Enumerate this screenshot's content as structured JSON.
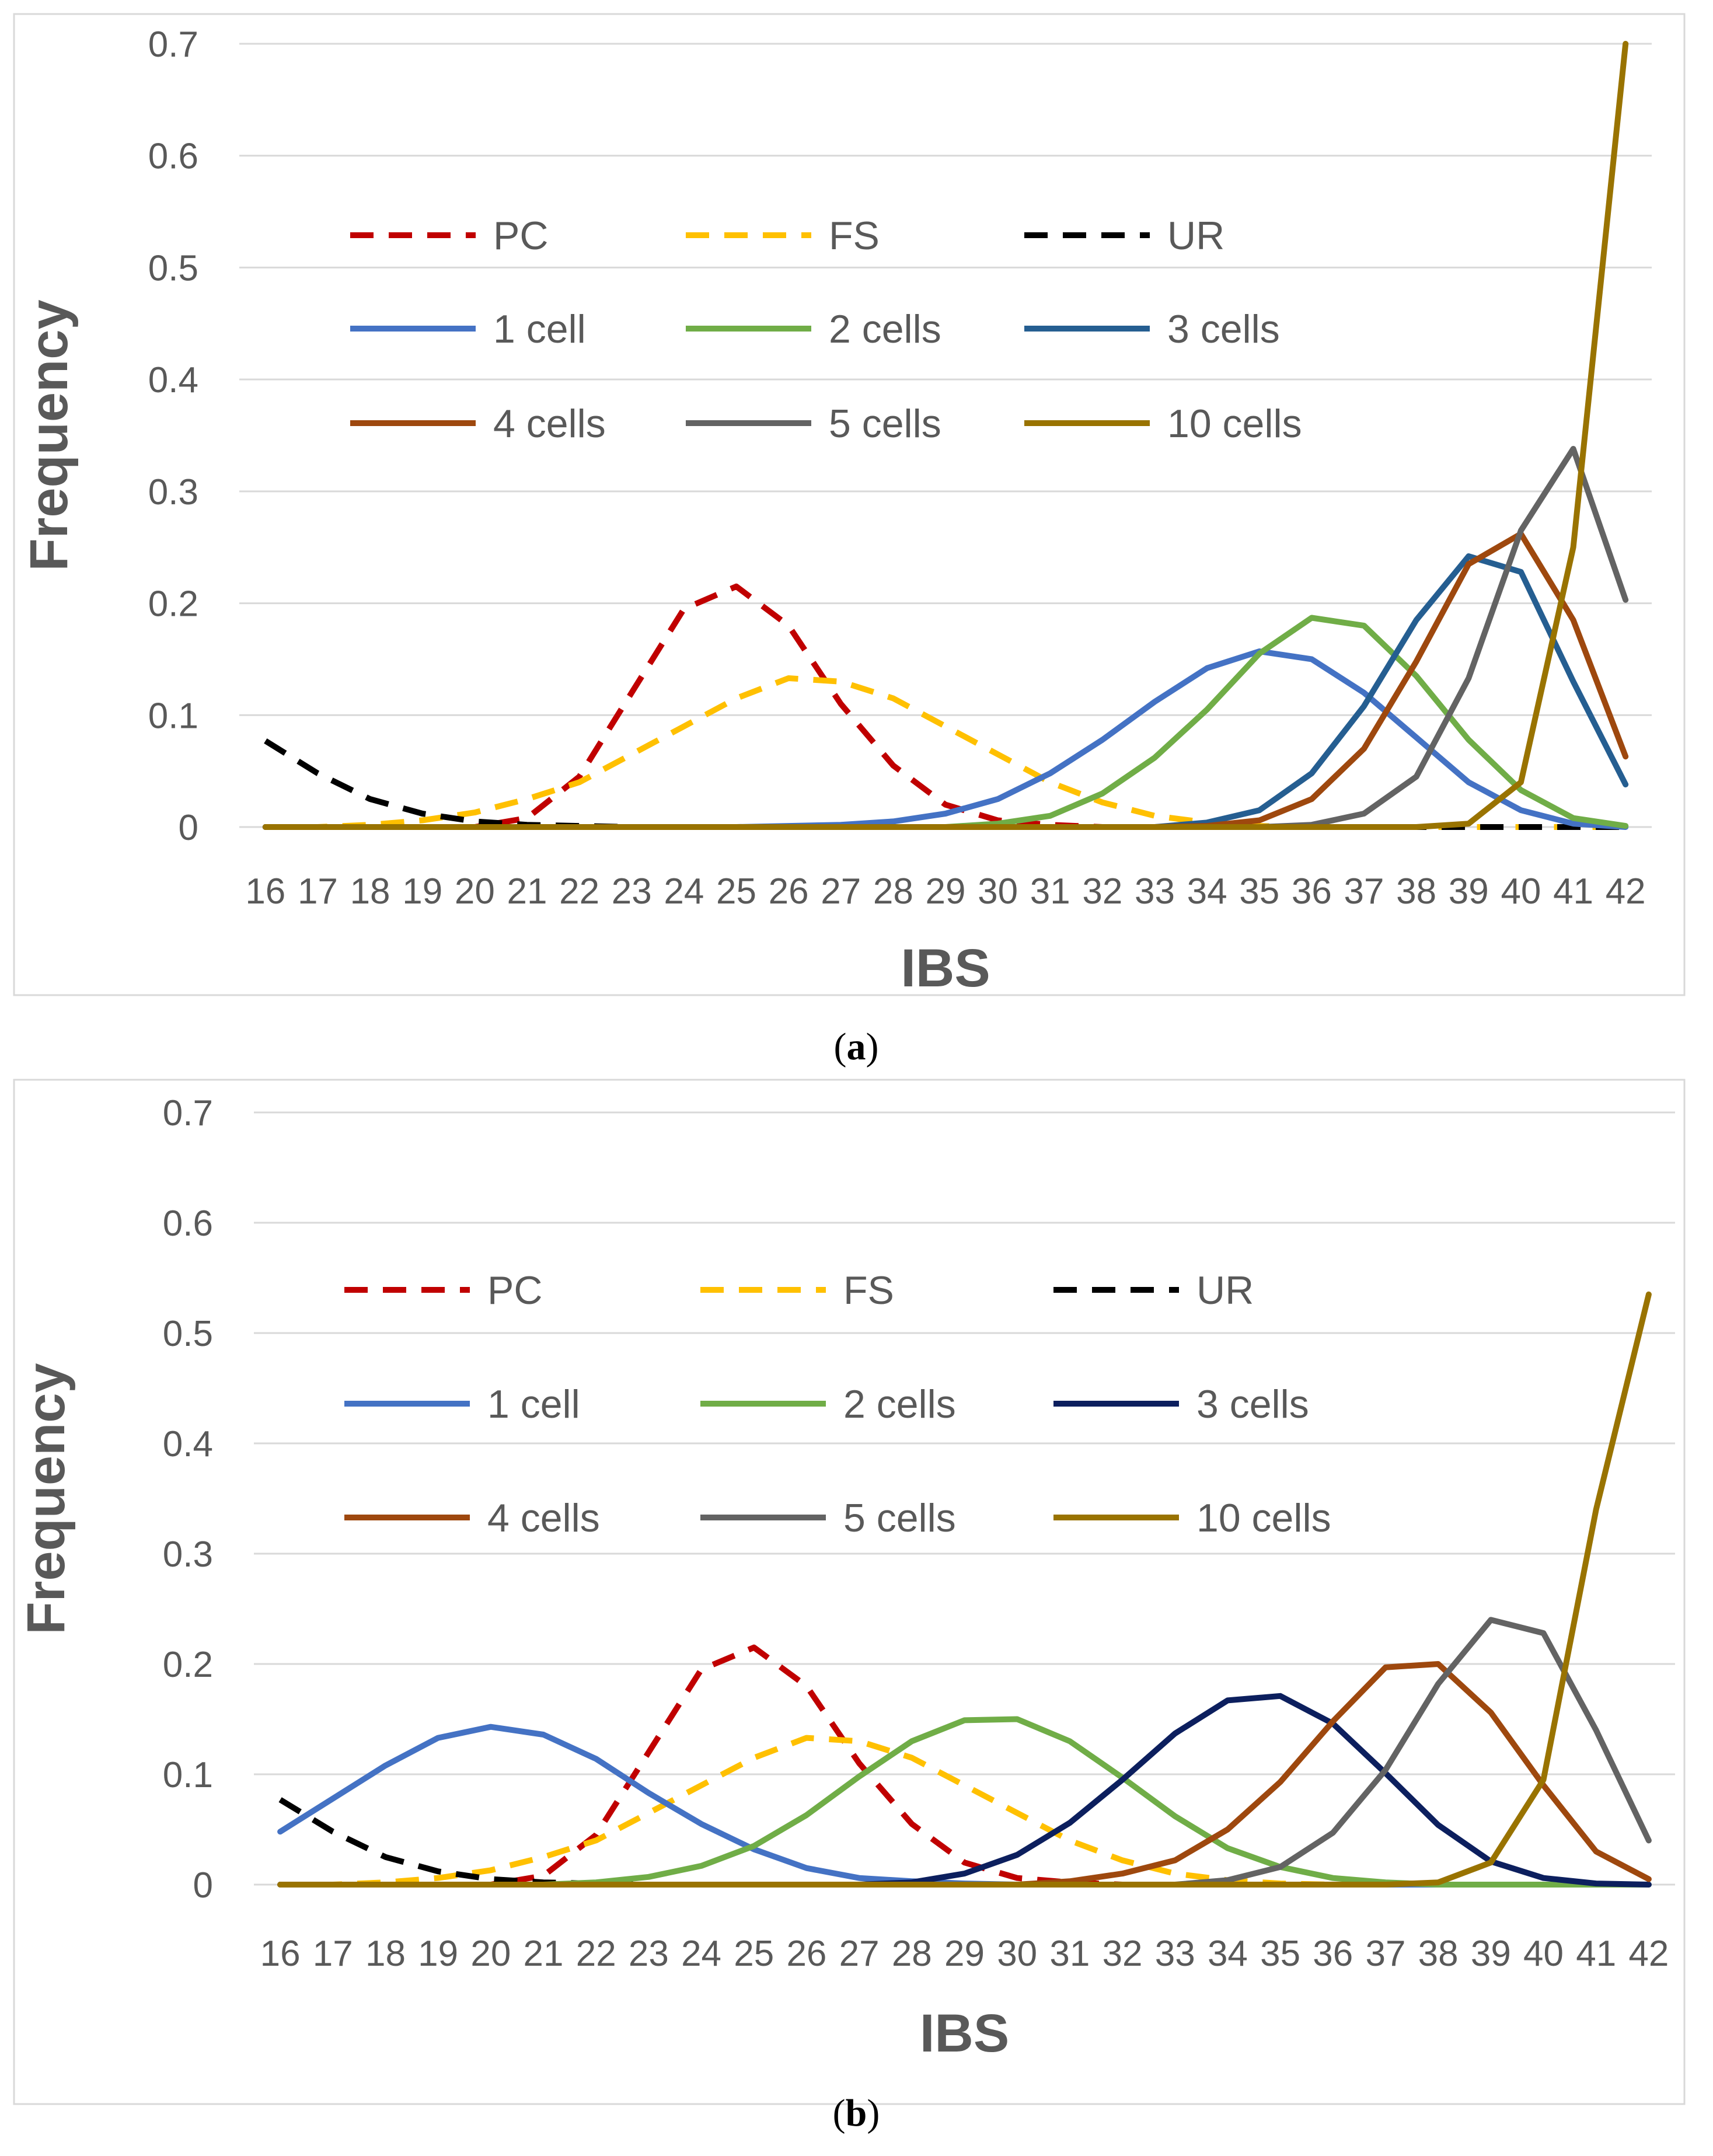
{
  "chart_data": [
    {
      "type": "line",
      "panel": "a",
      "caption": "(a)",
      "caption_letter": "a",
      "xlabel": "IBS",
      "ylabel": "Frequency",
      "ylim": [
        0,
        0.7
      ],
      "y_ticks": [
        "0",
        "0.1",
        "0.2",
        "0.3",
        "0.4",
        "0.5",
        "0.6",
        "0.7"
      ],
      "x": [
        16,
        17,
        18,
        19,
        20,
        21,
        22,
        23,
        24,
        25,
        26,
        27,
        28,
        29,
        30,
        31,
        32,
        33,
        34,
        35,
        36,
        37,
        38,
        39,
        40,
        41,
        42
      ],
      "grid": true,
      "legend_position": "top-left",
      "series": [
        {
          "name": "PC",
          "style": "dashed",
          "color": "#c00000",
          "values": [
            0,
            0,
            0,
            0,
            0,
            0.008,
            0.045,
            0.12,
            0.195,
            0.215,
            0.18,
            0.11,
            0.055,
            0.02,
            0.006,
            0.002,
            0,
            0,
            0,
            0,
            0,
            0,
            0,
            0,
            0,
            0,
            0
          ]
        },
        {
          "name": "FS",
          "style": "dashed",
          "color": "#ffc000",
          "values": [
            0,
            0,
            0.002,
            0.006,
            0.013,
            0.025,
            0.04,
            0.065,
            0.09,
            0.115,
            0.133,
            0.13,
            0.115,
            0.09,
            0.065,
            0.04,
            0.022,
            0.01,
            0.004,
            0.001,
            0,
            0,
            0,
            0,
            0,
            0,
            0
          ]
        },
        {
          "name": "UR",
          "style": "dashed",
          "color": "#000000",
          "values": [
            0.077,
            0.048,
            0.025,
            0.012,
            0.005,
            0.002,
            0.001,
            0,
            0,
            0,
            0,
            0,
            0,
            0,
            0,
            0,
            0,
            0,
            0,
            0,
            0,
            0,
            0,
            0,
            0,
            0,
            0
          ]
        },
        {
          "name": "1 cell",
          "style": "solid",
          "color": "#4472c4",
          "values": [
            0,
            0,
            0,
            0,
            0,
            0,
            0,
            0,
            0,
            0,
            0.001,
            0.002,
            0.005,
            0.012,
            0.025,
            0.048,
            0.078,
            0.112,
            0.142,
            0.157,
            0.15,
            0.12,
            0.08,
            0.04,
            0.015,
            0.003,
            0
          ]
        },
        {
          "name": "2 cells",
          "style": "solid",
          "color": "#70ad47",
          "values": [
            0,
            0,
            0,
            0,
            0,
            0,
            0,
            0,
            0,
            0,
            0,
            0,
            0,
            0,
            0.003,
            0.01,
            0.03,
            0.062,
            0.105,
            0.155,
            0.187,
            0.18,
            0.135,
            0.078,
            0.033,
            0.008,
            0.001
          ]
        },
        {
          "name": "3 cells",
          "style": "solid",
          "color": "#255e91",
          "values": [
            0,
            0,
            0,
            0,
            0,
            0,
            0,
            0,
            0,
            0,
            0,
            0,
            0,
            0,
            0,
            0,
            0,
            0,
            0.004,
            0.015,
            0.048,
            0.108,
            0.185,
            0.242,
            0.228,
            0.13,
            0.038
          ]
        },
        {
          "name": "4 cells",
          "style": "solid",
          "color": "#9e480e",
          "values": [
            0,
            0,
            0,
            0,
            0,
            0,
            0,
            0,
            0,
            0,
            0,
            0,
            0,
            0,
            0,
            0,
            0,
            0,
            0.001,
            0.006,
            0.025,
            0.07,
            0.148,
            0.235,
            0.262,
            0.185,
            0.063
          ]
        },
        {
          "name": "5 cells",
          "style": "solid",
          "color": "#636363",
          "values": [
            0,
            0,
            0,
            0,
            0,
            0,
            0,
            0,
            0,
            0,
            0,
            0,
            0,
            0,
            0,
            0,
            0,
            0,
            0,
            0,
            0.002,
            0.012,
            0.045,
            0.133,
            0.265,
            0.338,
            0.203
          ]
        },
        {
          "name": "10 cells",
          "style": "solid",
          "color": "#997300",
          "values": [
            0,
            0,
            0,
            0,
            0,
            0,
            0,
            0,
            0,
            0,
            0,
            0,
            0,
            0,
            0,
            0,
            0,
            0,
            0,
            0,
            0,
            0,
            0,
            0.003,
            0.04,
            0.25,
            0.7
          ]
        }
      ]
    },
    {
      "type": "line",
      "panel": "b",
      "caption": "(b)",
      "caption_letter": "b",
      "xlabel": "IBS",
      "ylabel": "Frequency",
      "ylim": [
        0,
        0.7
      ],
      "y_ticks": [
        "0",
        "0.1",
        "0.2",
        "0.3",
        "0.4",
        "0.5",
        "0.6",
        "0.7"
      ],
      "x": [
        16,
        17,
        18,
        19,
        20,
        21,
        22,
        23,
        24,
        25,
        26,
        27,
        28,
        29,
        30,
        31,
        32,
        33,
        34,
        35,
        36,
        37,
        38,
        39,
        40,
        41,
        42
      ],
      "grid": true,
      "legend_position": "top-left",
      "series": [
        {
          "name": "PC",
          "style": "dashed",
          "color": "#c00000",
          "values": [
            0,
            0,
            0,
            0,
            0,
            0.008,
            0.045,
            0.12,
            0.195,
            0.215,
            0.18,
            0.11,
            0.055,
            0.02,
            0.006,
            0.002,
            0,
            0,
            0,
            0,
            0,
            0,
            0,
            0,
            0,
            0,
            0
          ]
        },
        {
          "name": "FS",
          "style": "dashed",
          "color": "#ffc000",
          "values": [
            0,
            0,
            0.002,
            0.006,
            0.013,
            0.025,
            0.04,
            0.065,
            0.09,
            0.115,
            0.133,
            0.13,
            0.115,
            0.09,
            0.065,
            0.04,
            0.022,
            0.01,
            0.004,
            0.001,
            0,
            0,
            0,
            0,
            0,
            0,
            0
          ]
        },
        {
          "name": "UR",
          "style": "dashed",
          "color": "#000000",
          "values": [
            0.077,
            0.048,
            0.025,
            0.012,
            0.005,
            0.002,
            0.001,
            0,
            0,
            0,
            0,
            0,
            0,
            0,
            0,
            0,
            0,
            0,
            0,
            0,
            0,
            0,
            0,
            0,
            0,
            0,
            0
          ]
        },
        {
          "name": "1 cell",
          "style": "solid",
          "color": "#4472c4",
          "values": [
            0.048,
            0.078,
            0.108,
            0.133,
            0.143,
            0.136,
            0.114,
            0.083,
            0.055,
            0.032,
            0.015,
            0.006,
            0.003,
            0.001,
            0,
            0,
            0,
            0,
            0,
            0,
            0,
            0,
            0,
            0,
            0,
            0,
            0
          ]
        },
        {
          "name": "2 cells",
          "style": "solid",
          "color": "#70ad47",
          "values": [
            0,
            0,
            0,
            0,
            0,
            0,
            0.002,
            0.007,
            0.017,
            0.035,
            0.063,
            0.098,
            0.13,
            0.149,
            0.15,
            0.13,
            0.097,
            0.062,
            0.033,
            0.016,
            0.006,
            0.002,
            0,
            0,
            0,
            0,
            0
          ]
        },
        {
          "name": "3 cells",
          "style": "solid",
          "color": "#0c1f5e",
          "values": [
            0,
            0,
            0,
            0,
            0,
            0,
            0,
            0,
            0,
            0,
            0,
            0,
            0.002,
            0.01,
            0.027,
            0.056,
            0.095,
            0.137,
            0.167,
            0.171,
            0.146,
            0.101,
            0.054,
            0.021,
            0.006,
            0.001,
            0
          ]
        },
        {
          "name": "4 cells",
          "style": "solid",
          "color": "#9e480e",
          "values": [
            0,
            0,
            0,
            0,
            0,
            0,
            0,
            0,
            0,
            0,
            0,
            0,
            0,
            0,
            0,
            0.003,
            0.01,
            0.022,
            0.05,
            0.093,
            0.148,
            0.197,
            0.2,
            0.156,
            0.09,
            0.03,
            0.005
          ]
        },
        {
          "name": "5 cells",
          "style": "solid",
          "color": "#636363",
          "values": [
            0,
            0,
            0,
            0,
            0,
            0,
            0,
            0,
            0,
            0,
            0,
            0,
            0,
            0,
            0,
            0,
            0,
            0,
            0.004,
            0.016,
            0.047,
            0.104,
            0.182,
            0.24,
            0.228,
            0.14,
            0.04
          ]
        },
        {
          "name": "10 cells",
          "style": "solid",
          "color": "#997300",
          "values": [
            0,
            0,
            0,
            0,
            0,
            0,
            0,
            0,
            0,
            0,
            0,
            0,
            0,
            0,
            0,
            0,
            0,
            0,
            0,
            0,
            0,
            0,
            0.002,
            0.02,
            0.095,
            0.34,
            0.535
          ]
        }
      ]
    }
  ]
}
